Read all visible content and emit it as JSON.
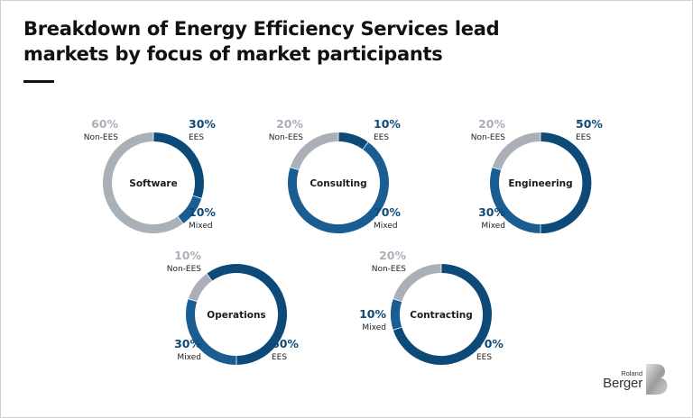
{
  "header": {
    "title": "Breakdown of Energy Efficiency Services lead markets by focus of market participants"
  },
  "colors": {
    "EES": "#0d4a78",
    "Mixed": "#1a5d92",
    "Non-EES": "#a9b0b8",
    "text": "#111111"
  },
  "logo": {
    "line1": "Roland",
    "line2": "Berger",
    "mark": "B"
  },
  "chart_data": {
    "type": "pie",
    "variant": "donut",
    "title": "Breakdown of Energy Efficiency Services lead markets by focus of market participants",
    "categories": [
      "EES",
      "Mixed",
      "Non-EES"
    ],
    "charts": [
      {
        "name": "Software",
        "values": {
          "EES": 30,
          "Mixed": 10,
          "Non-EES": 60
        },
        "order": [
          "EES",
          "Mixed",
          "Non-EES"
        ],
        "start_deg": 0,
        "labels": [
          {
            "cat": "Non-EES",
            "pct": "60%",
            "text": "Non-EES",
            "side": "top-left"
          },
          {
            "cat": "EES",
            "pct": "30%",
            "text": "EES",
            "side": "top-right"
          },
          {
            "cat": "Mixed",
            "pct": "10%",
            "text": "Mixed",
            "side": "bottom-right"
          }
        ]
      },
      {
        "name": "Consulting",
        "values": {
          "EES": 10,
          "Mixed": 70,
          "Non-EES": 20
        },
        "order": [
          "EES",
          "Mixed",
          "Non-EES"
        ],
        "start_deg": 0,
        "labels": [
          {
            "cat": "Non-EES",
            "pct": "20%",
            "text": "Non-EES",
            "side": "top-left"
          },
          {
            "cat": "EES",
            "pct": "10%",
            "text": "EES",
            "side": "top-right"
          },
          {
            "cat": "Mixed",
            "pct": "70%",
            "text": "Mixed",
            "side": "bottom-right"
          }
        ]
      },
      {
        "name": "Engineering",
        "values": {
          "EES": 50,
          "Mixed": 30,
          "Non-EES": 20
        },
        "order": [
          "EES",
          "Mixed",
          "Non-EES"
        ],
        "start_deg": 0,
        "labels": [
          {
            "cat": "Non-EES",
            "pct": "20%",
            "text": "Non-EES",
            "side": "top-left"
          },
          {
            "cat": "EES",
            "pct": "50%",
            "text": "EES",
            "side": "top-right"
          },
          {
            "cat": "Mixed",
            "pct": "30%",
            "text": "Mixed",
            "side": "bottom-left"
          }
        ]
      },
      {
        "name": "Operations",
        "values": {
          "EES": 60,
          "Mixed": 30,
          "Non-EES": 10
        },
        "order": [
          "Mixed",
          "Non-EES",
          "EES"
        ],
        "start_deg": 180,
        "labels": [
          {
            "cat": "Non-EES",
            "pct": "10%",
            "text": "Non-EES",
            "side": "top-left"
          },
          {
            "cat": "Mixed",
            "pct": "30%",
            "text": "Mixed",
            "side": "bottom-left"
          },
          {
            "cat": "EES",
            "pct": "60%",
            "text": "EES",
            "side": "bottom-right"
          }
        ]
      },
      {
        "name": "Contracting",
        "values": {
          "EES": 70,
          "Mixed": 10,
          "Non-EES": 20
        },
        "order": [
          "EES",
          "Mixed",
          "Non-EES"
        ],
        "start_deg": 0,
        "labels": [
          {
            "cat": "Non-EES",
            "pct": "20%",
            "text": "Non-EES",
            "side": "top-left"
          },
          {
            "cat": "Mixed",
            "pct": "10%",
            "text": "Mixed",
            "side": "left"
          },
          {
            "cat": "EES",
            "pct": "70%",
            "text": "EES",
            "side": "bottom-right"
          }
        ]
      }
    ]
  }
}
